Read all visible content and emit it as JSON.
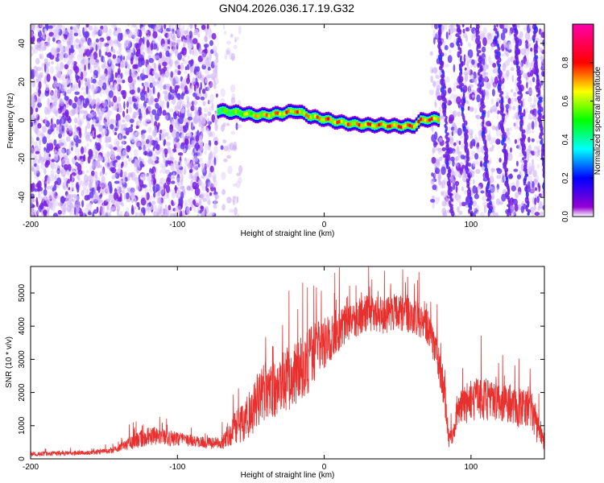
{
  "title": "GN04.2026.036.17.19.G32",
  "chart_data": [
    {
      "type": "heatmap",
      "title": "GN04.2026.036.17.19.G32",
      "xlabel": "Height of straight line (km)",
      "ylabel": "Frequency (Hz)",
      "xlim": [
        -200,
        150
      ],
      "ylim": [
        -50,
        50
      ],
      "xticks": [
        "-200",
        "-100",
        "0",
        "100"
      ],
      "yticks": [
        "40",
        "20",
        "0",
        "-20",
        "-40"
      ],
      "colorbar": {
        "label": "Normalized spectral amplitude",
        "range": [
          0,
          1
        ],
        "ticks": [
          "0.0",
          "0.2",
          "0.4",
          "0.6",
          "0.8"
        ],
        "colors": [
          "#ffffff",
          "#9400d3",
          "#0000ff",
          "#00ffff",
          "#00ff00",
          "#ffff00",
          "#ff0000",
          "#ff00aa"
        ]
      },
      "ridge": {
        "x": [
          -73,
          -60,
          -45,
          -30,
          -20,
          -10,
          0,
          10,
          20,
          30,
          40,
          50,
          60,
          65,
          70,
          78
        ],
        "freq": [
          5,
          4,
          2.5,
          3.5,
          5,
          2,
          0.5,
          -1,
          -2,
          -2.5,
          -2.5,
          -3,
          -3,
          0,
          0.5,
          0.5
        ],
        "amplitude": [
          0.55,
          0.6,
          0.75,
          0.8,
          0.8,
          0.75,
          0.82,
          0.8,
          0.78,
          0.85,
          0.82,
          0.88,
          0.85,
          0.85,
          0.9,
          0.8
        ]
      }
    },
    {
      "type": "line",
      "xlabel": "Height of straight line (km)",
      "ylabel": "SNR (10 * v/v)",
      "xlim": [
        -200,
        150
      ],
      "ylim": [
        0,
        5800
      ],
      "xticks": [
        "-200",
        "-100",
        "0",
        "100"
      ],
      "yticks": [
        "0",
        "1000",
        "2000",
        "3000",
        "4000",
        "5000"
      ],
      "color": "#e8302e",
      "envelope": {
        "x": [
          -200,
          -160,
          -145,
          -130,
          -120,
          -110,
          -100,
          -90,
          -75,
          -70,
          -65,
          -60,
          -55,
          -50,
          -45,
          -40,
          -35,
          -30,
          -25,
          -20,
          -15,
          -10,
          -5,
          0,
          10,
          20,
          30,
          40,
          50,
          60,
          65,
          70,
          72,
          75,
          80,
          83,
          85,
          88,
          90,
          95,
          100,
          110,
          120,
          125,
          130,
          135,
          140,
          145,
          150
        ],
        "mean": [
          150,
          180,
          250,
          500,
          700,
          650,
          600,
          550,
          450,
          500,
          700,
          1000,
          1100,
          1400,
          1800,
          2000,
          2100,
          2300,
          2400,
          2600,
          2700,
          3000,
          3300,
          3500,
          3900,
          4200,
          4400,
          4300,
          4400,
          4300,
          4200,
          4000,
          3800,
          3400,
          2500,
          1500,
          600,
          700,
          1300,
          1600,
          1800,
          1800,
          1700,
          1700,
          1600,
          1500,
          1600,
          1000,
          500
        ],
        "spread": [
          120,
          120,
          150,
          350,
          500,
          450,
          350,
          300,
          300,
          350,
          600,
          900,
          1000,
          1200,
          1400,
          1500,
          1500,
          1600,
          1700,
          1700,
          1700,
          1600,
          1400,
          1300,
          1100,
          1000,
          900,
          900,
          900,
          900,
          900,
          900,
          900,
          900,
          1000,
          900,
          500,
          500,
          800,
          1000,
          1100,
          1100,
          1000,
          1000,
          1000,
          1000,
          1100,
          900,
          400
        ]
      }
    }
  ]
}
